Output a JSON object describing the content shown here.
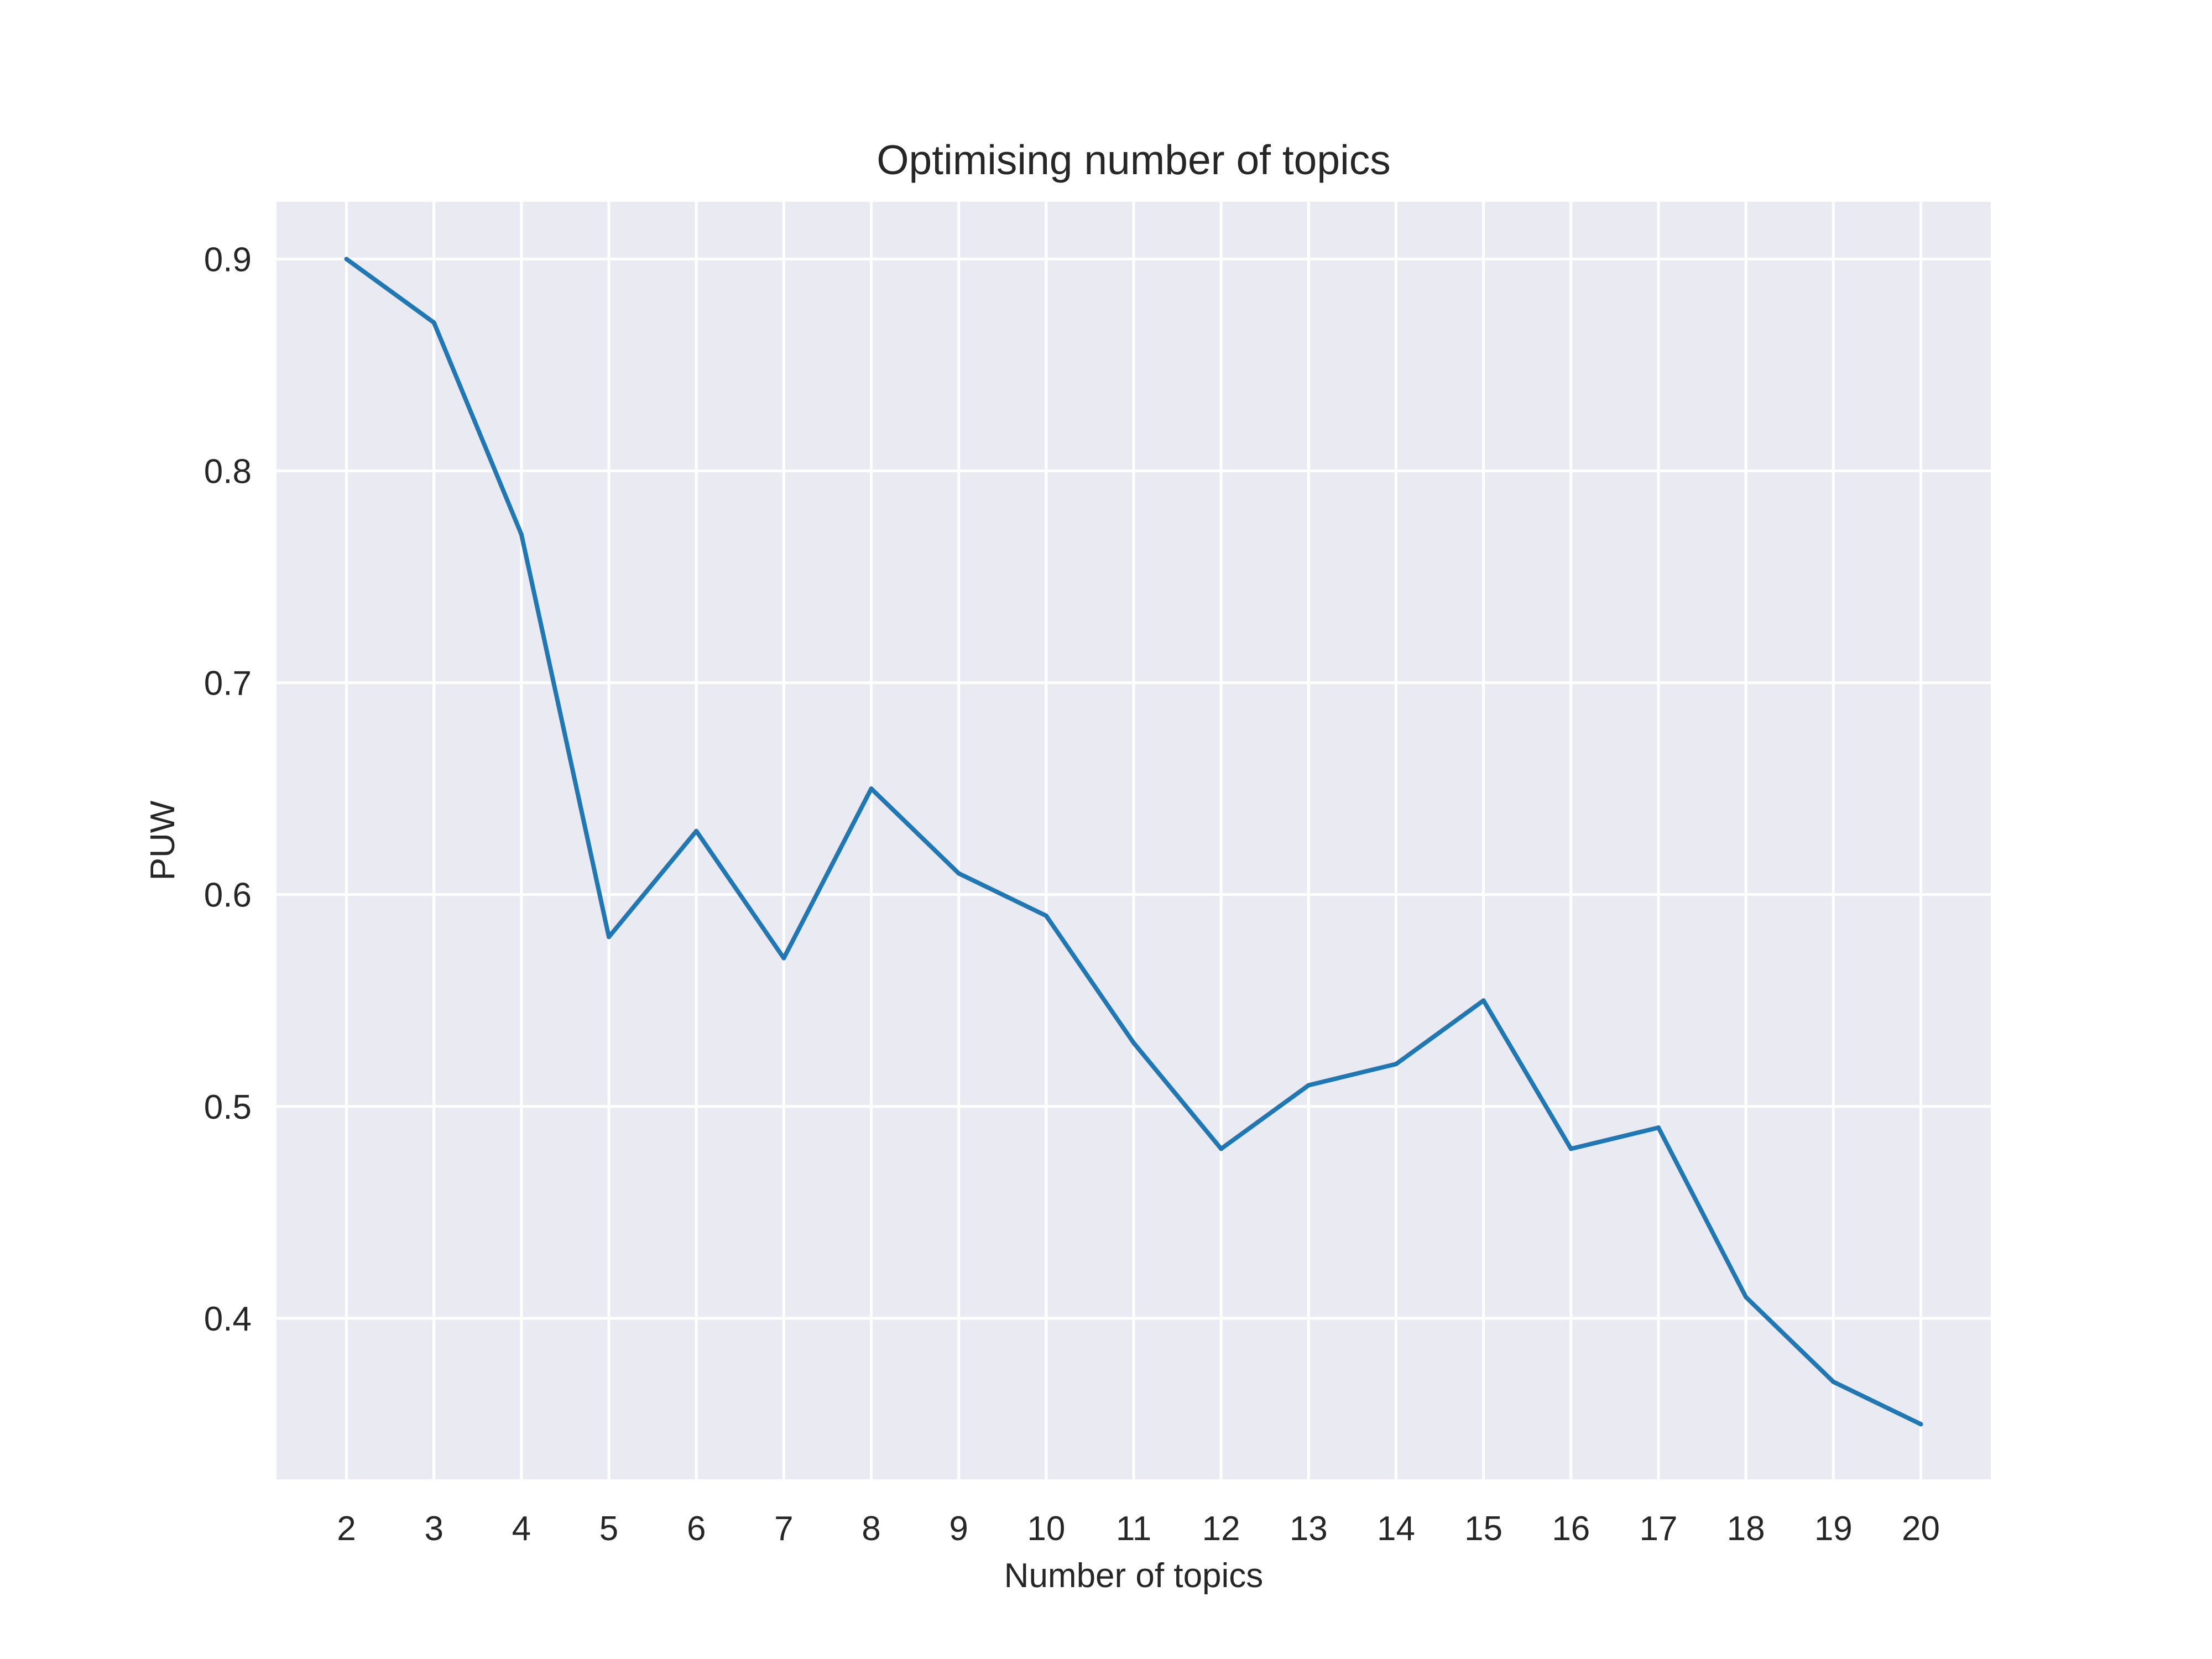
{
  "chart_data": {
    "type": "line",
    "title": "Optimising number of topics",
    "xlabel": "Number of topics",
    "ylabel": "PUW",
    "x": [
      2,
      3,
      4,
      5,
      6,
      7,
      8,
      9,
      10,
      11,
      12,
      13,
      14,
      15,
      16,
      17,
      18,
      19,
      20
    ],
    "series": [
      {
        "values": [
          0.9,
          0.87,
          0.77,
          0.58,
          0.63,
          0.57,
          0.65,
          0.61,
          0.59,
          0.53,
          0.48,
          0.51,
          0.52,
          0.55,
          0.48,
          0.49,
          0.41,
          0.37,
          0.35
        ],
        "color": "#1f77b4"
      }
    ],
    "xlim": [
      1.2,
      20.8
    ],
    "ylim": [
      0.324,
      0.927
    ],
    "x_ticks": [
      2,
      3,
      4,
      5,
      6,
      7,
      8,
      9,
      10,
      11,
      12,
      13,
      14,
      15,
      16,
      17,
      18,
      19,
      20
    ],
    "y_ticks": [
      "0.4",
      "0.5",
      "0.6",
      "0.7",
      "0.8",
      "0.9"
    ],
    "grid": true,
    "plot_background": "#eaeaf2",
    "gridline_color": "#ffffff",
    "text_color": "#262626"
  }
}
